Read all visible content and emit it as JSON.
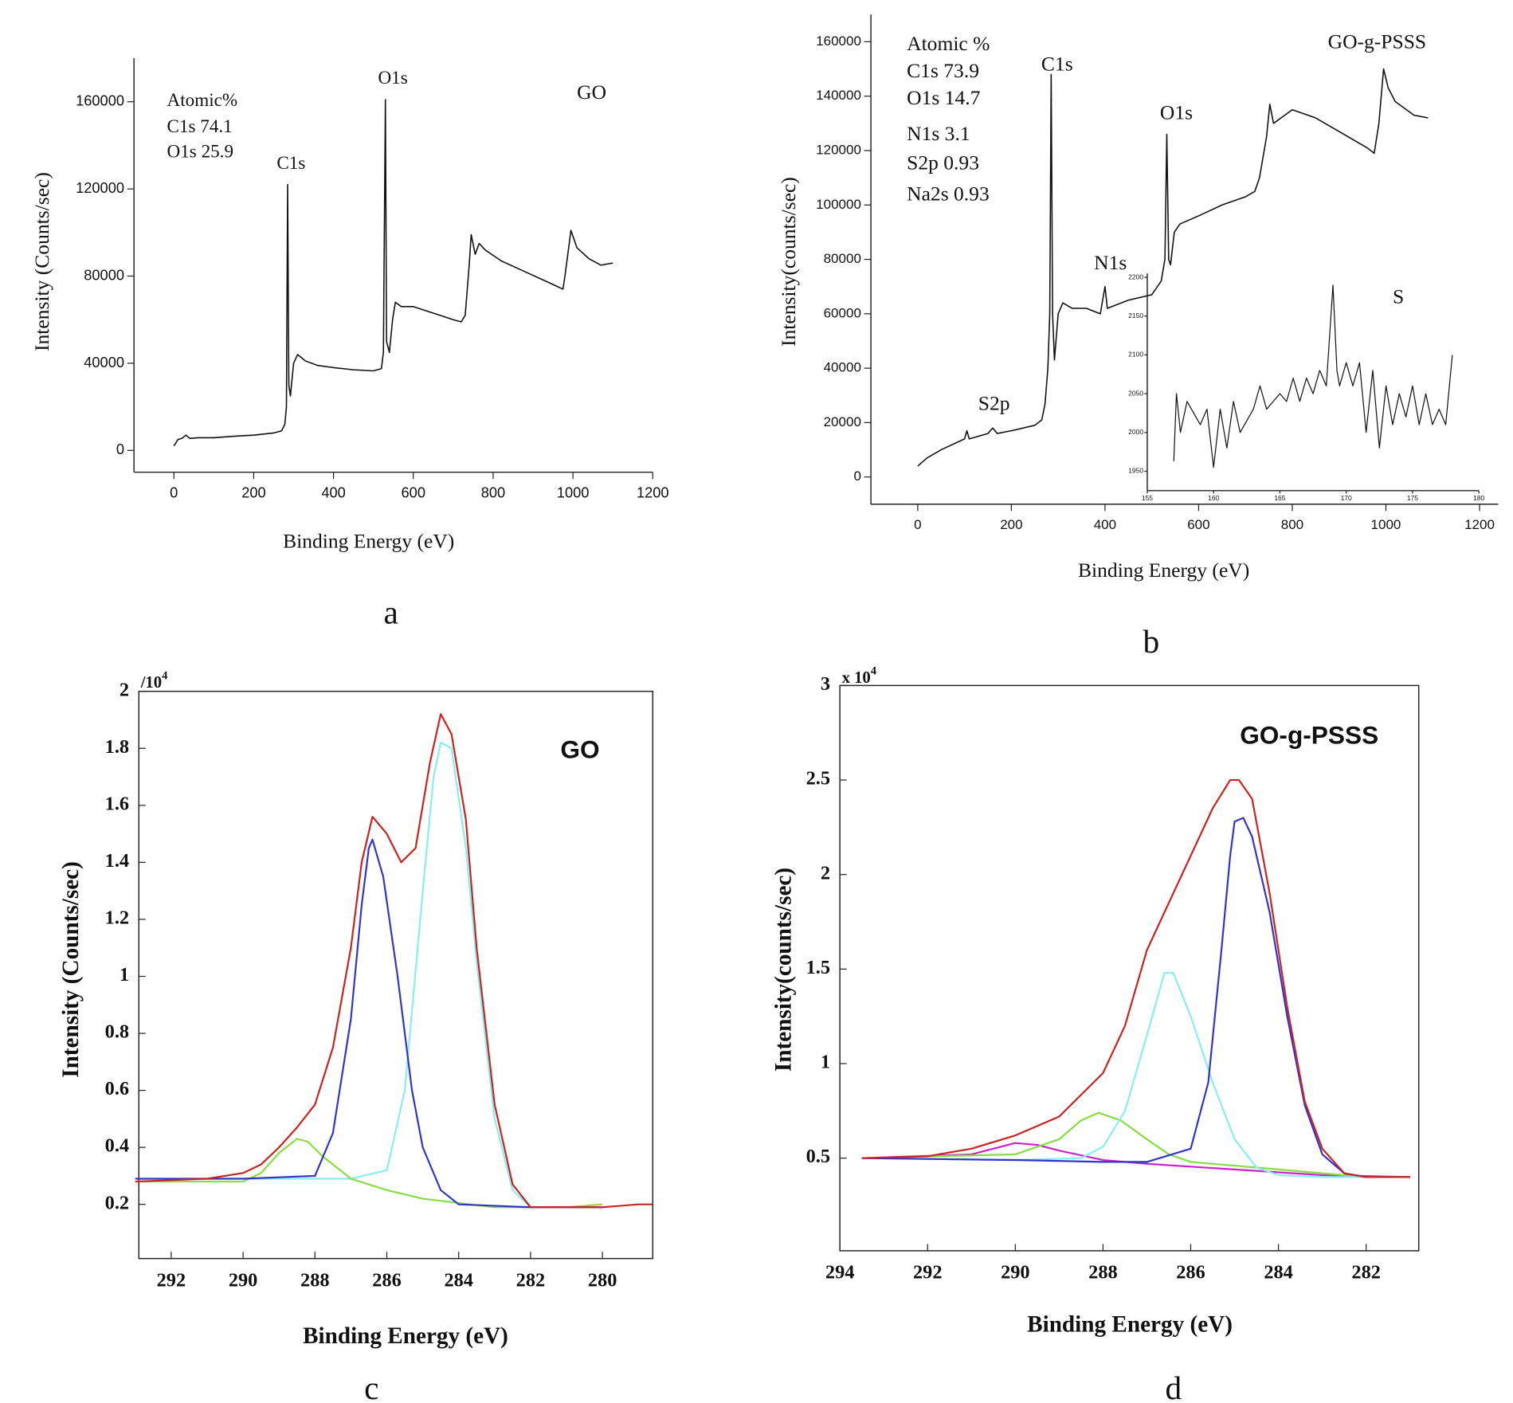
{
  "chart_data": [
    {
      "type": "line",
      "panel_label": "a",
      "xlabel": "Binding Energy (eV)",
      "ylabel": "Intensity (Counts/sec)",
      "xlim": [
        -100,
        1200
      ],
      "ylim": [
        -10000,
        180000
      ],
      "xticks": [
        0,
        200,
        400,
        600,
        800,
        1000,
        1200
      ],
      "yticks": [
        0,
        40000,
        80000,
        120000,
        160000
      ],
      "annotations": [
        "Atomic%",
        "C1s  74.1",
        "O1s  25.9",
        "C1s",
        "O1s",
        "GO"
      ],
      "series": [
        {
          "color": "#111111",
          "x": [
            0,
            10,
            20,
            30,
            40,
            60,
            100,
            150,
            200,
            250,
            270,
            278,
            282,
            285,
            288,
            292,
            300,
            310,
            330,
            360,
            400,
            450,
            500,
            520,
            525,
            530,
            533,
            540,
            548,
            555,
            570,
            600,
            650,
            700,
            720,
            730,
            740,
            745,
            755,
            765,
            780,
            820,
            880,
            940,
            975,
            980,
            995,
            1010,
            1040,
            1070,
            1100
          ],
          "values": [
            2000,
            5000,
            5500,
            7000,
            5500,
            5800,
            5800,
            6500,
            7000,
            8000,
            9000,
            12000,
            20000,
            122000,
            30000,
            25000,
            40000,
            44000,
            41000,
            39000,
            38000,
            37000,
            36500,
            37500,
            45000,
            161000,
            50000,
            45000,
            60000,
            68000,
            66000,
            66000,
            63000,
            60000,
            59000,
            62000,
            85000,
            99000,
            90000,
            95000,
            92000,
            87000,
            82000,
            77000,
            74000,
            80000,
            101000,
            93000,
            88000,
            85000,
            86000
          ]
        }
      ]
    },
    {
      "type": "line",
      "panel_label": "b",
      "xlabel": "Binding Energy (eV)",
      "ylabel": "Intensity(counts/sec)",
      "xlim": [
        -100,
        1240
      ],
      "ylim": [
        -10000,
        170000
      ],
      "xticks": [
        0,
        200,
        400,
        600,
        800,
        1000,
        1200
      ],
      "yticks": [
        0,
        20000,
        40000,
        60000,
        80000,
        100000,
        120000,
        140000,
        160000
      ],
      "annotations": [
        "Atomic %",
        "C1s  73.9",
        "O1s  14.7",
        "N1s  3.1",
        "S2p  0.93",
        "Na2s  0.93",
        "C1s",
        "O1s",
        "N1s",
        "S2p",
        "GO-g-PSSS",
        "S"
      ],
      "series": [
        {
          "color": "#111111",
          "x": [
            0,
            20,
            50,
            100,
            105,
            110,
            150,
            160,
            170,
            200,
            250,
            265,
            272,
            278,
            282,
            285,
            288,
            292,
            300,
            310,
            330,
            360,
            390,
            400,
            405,
            450,
            500,
            520,
            528,
            532,
            536,
            540,
            548,
            560,
            600,
            650,
            700,
            720,
            730,
            745,
            752,
            760,
            800,
            850,
            900,
            960,
            975,
            985,
            995,
            1005,
            1020,
            1060,
            1090
          ],
          "values": [
            4000,
            7000,
            10000,
            14000,
            17000,
            14000,
            16000,
            18000,
            16000,
            17000,
            19000,
            21000,
            27000,
            40000,
            60000,
            148000,
            60000,
            43000,
            60000,
            64000,
            62000,
            62000,
            60000,
            70000,
            62000,
            65000,
            67000,
            72000,
            80000,
            126000,
            80000,
            78000,
            90000,
            93000,
            96000,
            100000,
            103000,
            105000,
            110000,
            125000,
            137000,
            130000,
            135000,
            132000,
            127000,
            121000,
            119000,
            130000,
            150000,
            143000,
            138000,
            133000,
            132000
          ]
        }
      ]
    },
    {
      "type": "line",
      "xlim": [
        155,
        180
      ],
      "ylim": [
        1925,
        2205
      ],
      "xticks": [
        155,
        160,
        165,
        170,
        175,
        180
      ],
      "yticks": [
        1950,
        2000,
        2050,
        2100,
        2150,
        2200
      ],
      "series": [
        {
          "color": "#111111",
          "x": [
            157,
            157.2,
            157.5,
            158,
            159,
            159.5,
            160,
            160.5,
            161,
            161.5,
            162,
            163,
            163.5,
            164,
            165,
            165.5,
            166,
            166.5,
            167,
            167.5,
            168,
            168.5,
            169,
            169.3,
            169.5,
            170,
            170.5,
            171,
            171.5,
            172,
            172.5,
            173,
            173.5,
            174,
            174.5,
            175,
            175.5,
            176,
            176.5,
            177,
            177.5,
            178
          ],
          "values": [
            1963,
            2050,
            2000,
            2040,
            2010,
            2030,
            1955,
            2030,
            1980,
            2040,
            2000,
            2030,
            2060,
            2030,
            2050,
            2040,
            2070,
            2040,
            2070,
            2050,
            2080,
            2060,
            2190,
            2080,
            2060,
            2090,
            2060,
            2090,
            2000,
            2080,
            1980,
            2060,
            2010,
            2050,
            2020,
            2060,
            2010,
            2050,
            2010,
            2030,
            2010,
            2100
          ]
        }
      ]
    },
    {
      "type": "line",
      "panel_label": "c",
      "xlabel": "Binding Energy (eV)",
      "ylabel": "Intensity (Counts/sec)",
      "y_multiplier": {
        "base": "/10",
        "exponent": "4"
      },
      "xlim": [
        292.9,
        278.6
      ],
      "ylim": [
        0.01,
        2
      ],
      "xticks": [
        292,
        290,
        288,
        286,
        284,
        282,
        280
      ],
      "yticks": [
        0.2,
        0.4,
        0.6,
        0.8,
        1,
        1.2,
        1.4,
        1.6,
        1.8,
        2
      ],
      "annotations": [
        "GO"
      ],
      "series": [
        {
          "color": "#88eeee",
          "x": [
            290,
            287,
            286,
            285.5,
            285,
            284.7,
            284.5,
            284.2,
            283.8,
            283.5,
            283,
            282.5,
            282
          ],
          "values": [
            0.29,
            0.29,
            0.32,
            0.6,
            1.3,
            1.7,
            1.82,
            1.8,
            1.45,
            1.05,
            0.5,
            0.25,
            0.19
          ]
        },
        {
          "color": "#88dd44",
          "x": [
            293,
            290,
            289.5,
            289,
            288.5,
            288.2,
            287.8,
            287,
            286,
            285,
            283,
            281,
            280
          ],
          "values": [
            0.28,
            0.28,
            0.31,
            0.38,
            0.43,
            0.42,
            0.37,
            0.29,
            0.25,
            0.22,
            0.19,
            0.19,
            0.2
          ]
        },
        {
          "color": "#3333cc",
          "x": [
            293,
            290,
            288,
            287.5,
            287,
            286.7,
            286.5,
            286.4,
            286.1,
            285.7,
            285.3,
            285,
            284.5,
            284,
            282,
            280
          ],
          "values": [
            0.29,
            0.29,
            0.3,
            0.45,
            0.85,
            1.25,
            1.45,
            1.48,
            1.35,
            1,
            0.6,
            0.4,
            0.25,
            0.2,
            0.19,
            0.19
          ]
        },
        {
          "color": "#cc2222",
          "x": [
            293,
            291,
            290,
            289.5,
            289,
            288.5,
            288,
            287.5,
            287,
            286.7,
            286.4,
            286,
            285.6,
            285.2,
            284.8,
            284.5,
            284.2,
            283.8,
            283.5,
            283,
            282.5,
            282,
            281,
            280,
            279,
            278.6
          ],
          "values": [
            0.28,
            0.29,
            0.31,
            0.34,
            0.4,
            0.47,
            0.55,
            0.75,
            1.1,
            1.4,
            1.56,
            1.5,
            1.4,
            1.45,
            1.75,
            1.92,
            1.85,
            1.55,
            1.1,
            0.55,
            0.27,
            0.19,
            0.19,
            0.19,
            0.2,
            0.2
          ]
        }
      ]
    },
    {
      "type": "line",
      "panel_label": "d",
      "xlabel": "Binding Energy (eV)",
      "ylabel": "Intensity(counts/sec)",
      "y_multiplier": {
        "base": "x 10",
        "exponent": "4"
      },
      "xlim": [
        294,
        280.8
      ],
      "ylim": [
        0.01,
        3
      ],
      "xticks": [
        294,
        292,
        290,
        288,
        286,
        284,
        282
      ],
      "yticks": [
        0.5,
        1,
        1.5,
        2,
        2.5,
        3
      ],
      "annotations": [
        "GO-g-PSSS"
      ],
      "series": [
        {
          "color": "#cc22cc",
          "x": [
            293.5,
            291,
            290,
            289.5,
            289,
            288,
            287,
            285,
            283,
            281
          ],
          "values": [
            0.5,
            0.52,
            0.58,
            0.57,
            0.54,
            0.49,
            0.47,
            0.44,
            0.41,
            0.4
          ]
        },
        {
          "color": "#88dd44",
          "x": [
            293.5,
            290,
            289,
            288.5,
            288.1,
            287.6,
            287,
            286.5,
            286,
            284,
            282
          ],
          "values": [
            0.5,
            0.52,
            0.6,
            0.7,
            0.74,
            0.7,
            0.6,
            0.52,
            0.48,
            0.44,
            0.4
          ]
        },
        {
          "color": "#88eeee",
          "x": [
            293.5,
            290,
            288.5,
            288,
            287.5,
            287,
            286.6,
            286.4,
            286,
            285.5,
            285,
            284.5,
            284,
            283,
            281
          ],
          "values": [
            0.5,
            0.49,
            0.5,
            0.56,
            0.75,
            1.15,
            1.48,
            1.48,
            1.25,
            0.9,
            0.6,
            0.45,
            0.41,
            0.4,
            0.4
          ]
        },
        {
          "color": "#3333cc",
          "x": [
            293.5,
            290,
            288,
            287,
            286,
            285.6,
            285.3,
            285.1,
            285,
            284.8,
            284.6,
            284.2,
            283.8,
            283.4,
            283,
            282.5,
            282,
            281
          ],
          "values": [
            0.5,
            0.49,
            0.48,
            0.48,
            0.55,
            0.9,
            1.6,
            2.1,
            2.28,
            2.3,
            2.2,
            1.8,
            1.25,
            0.78,
            0.52,
            0.42,
            0.4,
            0.4
          ]
        },
        {
          "color": "#cc2222",
          "x": [
            293.5,
            292,
            291,
            290,
            289,
            288,
            287.5,
            287,
            286.5,
            286,
            285.5,
            285.1,
            284.9,
            284.6,
            284.2,
            283.8,
            283.4,
            283,
            282.5,
            282,
            281
          ],
          "values": [
            0.5,
            0.51,
            0.55,
            0.62,
            0.72,
            0.95,
            1.2,
            1.6,
            1.85,
            2.1,
            2.35,
            2.5,
            2.5,
            2.4,
            1.9,
            1.3,
            0.8,
            0.55,
            0.42,
            0.4,
            0.4
          ]
        }
      ]
    }
  ]
}
